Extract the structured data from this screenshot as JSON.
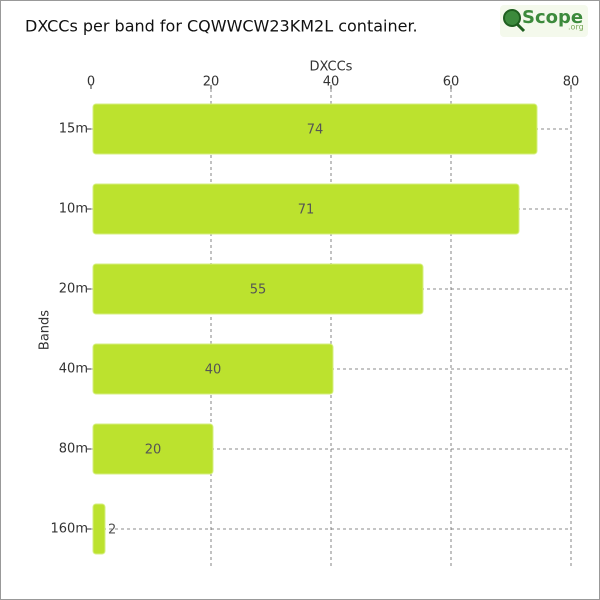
{
  "chart_data": {
    "type": "bar",
    "orientation": "horizontal",
    "title": "DXCCs per band for CQWWCW23KM2L container.",
    "logo": {
      "main": "Scope",
      "suffix": ".org"
    },
    "x_label": "DXCCs",
    "y_label": "Bands",
    "categories": [
      "15m",
      "10m",
      "20m",
      "40m",
      "80m",
      "160m"
    ],
    "values": [
      74,
      71,
      55,
      40,
      20,
      2
    ],
    "color": "#bce22e",
    "xlim": [
      0,
      80
    ],
    "xticks": [
      0,
      20,
      40,
      60,
      80
    ],
    "grid": true
  }
}
